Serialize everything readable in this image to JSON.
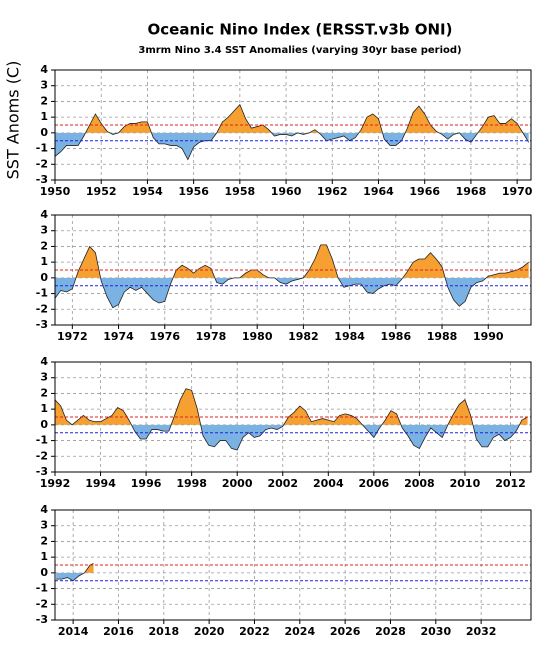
{
  "title": "Oceanic Nino Index (ERSST.v3b ONI)",
  "subtitle": "3mrm Nino 3.4 SST Anomalies (varying 30yr base period)",
  "y_label": "SST Anoms (C)",
  "chart_data": [
    {
      "type": "anomaly-area",
      "positive_color": "#f5a030",
      "negative_color": "#7ab2e4",
      "line_color": "#222222",
      "xlim": [
        1950,
        1970.6
      ],
      "ylim": [
        -3,
        4
      ],
      "yticks": [
        -3,
        -2,
        -1,
        0,
        1,
        2,
        3,
        4
      ],
      "grid": true,
      "xticks": [
        1950,
        1952,
        1954,
        1956,
        1958,
        1960,
        1962,
        1964,
        1966,
        1968,
        1970
      ],
      "thresholds": [
        {
          "value": 0.5,
          "color": "#e02020"
        },
        {
          "value": -0.5,
          "color": "#2020e0"
        }
      ],
      "x": [
        1950,
        1950.25,
        1950.5,
        1950.75,
        1951,
        1951.25,
        1951.5,
        1951.75,
        1952,
        1952.25,
        1952.5,
        1952.75,
        1953,
        1953.25,
        1953.5,
        1953.75,
        1954,
        1954.25,
        1954.5,
        1954.75,
        1955,
        1955.25,
        1955.5,
        1955.75,
        1956,
        1956.25,
        1956.5,
        1956.75,
        1957,
        1957.25,
        1957.5,
        1957.75,
        1958,
        1958.25,
        1958.5,
        1958.75,
        1959,
        1959.25,
        1959.5,
        1959.75,
        1960,
        1960.25,
        1960.5,
        1960.75,
        1961,
        1961.25,
        1961.5,
        1961.75,
        1962,
        1962.25,
        1962.5,
        1962.75,
        1963,
        1963.25,
        1963.5,
        1963.75,
        1964,
        1964.25,
        1964.5,
        1964.75,
        1965,
        1965.25,
        1965.5,
        1965.75,
        1966,
        1966.25,
        1966.5,
        1966.75,
        1967,
        1967.25,
        1967.5,
        1967.75,
        1968,
        1968.25,
        1968.5,
        1968.75,
        1969,
        1969.25,
        1969.5,
        1969.75,
        1970,
        1970.25,
        1970.5
      ],
      "values": [
        -1.5,
        -1.2,
        -0.8,
        -0.8,
        -0.8,
        -0.2,
        0.5,
        1.2,
        0.6,
        0.1,
        -0.1,
        0.0,
        0.4,
        0.6,
        0.6,
        0.7,
        0.7,
        -0.3,
        -0.7,
        -0.7,
        -0.8,
        -0.8,
        -1.0,
        -1.7,
        -0.9,
        -0.6,
        -0.5,
        -0.5,
        0.0,
        0.7,
        1.0,
        1.4,
        1.8,
        0.9,
        0.3,
        0.4,
        0.5,
        0.2,
        -0.2,
        -0.1,
        -0.1,
        -0.2,
        0.0,
        -0.1,
        0.0,
        0.2,
        -0.1,
        -0.5,
        -0.4,
        -0.3,
        -0.2,
        -0.5,
        -0.3,
        0.2,
        1.0,
        1.2,
        0.9,
        -0.4,
        -0.8,
        -0.8,
        -0.5,
        0.3,
        1.3,
        1.7,
        1.2,
        0.5,
        0.1,
        -0.1,
        -0.4,
        -0.1,
        0.0,
        -0.4,
        -0.6,
        -0.1,
        0.4,
        1.0,
        1.1,
        0.6,
        0.6,
        0.9,
        0.6,
        0.0,
        -0.6
      ]
    },
    {
      "type": "anomaly-area",
      "positive_color": "#f5a030",
      "negative_color": "#7ab2e4",
      "line_color": "#222222",
      "xlim": [
        1971.25,
        1991.85
      ],
      "ylim": [
        -3,
        4
      ],
      "yticks": [
        -3,
        -2,
        -1,
        0,
        1,
        2,
        3,
        4
      ],
      "grid": true,
      "xticks": [
        1972,
        1974,
        1976,
        1978,
        1980,
        1982,
        1984,
        1986,
        1988,
        1990
      ],
      "thresholds": [
        {
          "value": 0.5,
          "color": "#e02020"
        },
        {
          "value": -0.5,
          "color": "#2020e0"
        }
      ],
      "x": [
        1971.25,
        1971.5,
        1971.75,
        1972,
        1972.25,
        1972.5,
        1972.75,
        1973,
        1973.25,
        1973.5,
        1973.75,
        1974,
        1974.25,
        1974.5,
        1974.75,
        1975,
        1975.25,
        1975.5,
        1975.75,
        1976,
        1976.25,
        1976.5,
        1976.75,
        1977,
        1977.25,
        1977.5,
        1977.75,
        1978,
        1978.25,
        1978.5,
        1978.75,
        1979,
        1979.25,
        1979.5,
        1979.75,
        1980,
        1980.25,
        1980.5,
        1980.75,
        1981,
        1981.25,
        1981.5,
        1981.75,
        1982,
        1982.25,
        1982.5,
        1982.75,
        1983,
        1983.25,
        1983.5,
        1983.75,
        1984,
        1984.25,
        1984.5,
        1984.75,
        1985,
        1985.25,
        1985.5,
        1985.75,
        1986,
        1986.25,
        1986.5,
        1986.75,
        1987,
        1987.25,
        1987.5,
        1987.75,
        1988,
        1988.25,
        1988.5,
        1988.75,
        1989,
        1989.25,
        1989.5,
        1989.75,
        1990,
        1990.25,
        1990.5,
        1990.75,
        1991,
        1991.25,
        1991.5,
        1991.75
      ],
      "values": [
        -1.3,
        -0.8,
        -0.9,
        -0.7,
        0.4,
        1.2,
        2.0,
        1.6,
        -0.2,
        -1.2,
        -1.9,
        -1.7,
        -0.9,
        -0.6,
        -0.8,
        -0.6,
        -1.0,
        -1.4,
        -1.6,
        -1.5,
        -0.4,
        0.5,
        0.8,
        0.6,
        0.3,
        0.6,
        0.8,
        0.6,
        -0.3,
        -0.4,
        -0.1,
        0.0,
        0.0,
        0.3,
        0.5,
        0.5,
        0.2,
        0.0,
        0.0,
        -0.3,
        -0.4,
        -0.2,
        -0.1,
        0.0,
        0.5,
        1.2,
        2.1,
        2.1,
        1.2,
        0.0,
        -0.6,
        -0.5,
        -0.4,
        -0.4,
        -0.9,
        -1.0,
        -0.7,
        -0.5,
        -0.4,
        -0.5,
        -0.1,
        0.4,
        1.0,
        1.2,
        1.2,
        1.6,
        1.2,
        0.7,
        -0.6,
        -1.4,
        -1.8,
        -1.5,
        -0.6,
        -0.3,
        -0.2,
        0.1,
        0.2,
        0.3,
        0.3,
        0.4,
        0.5,
        0.7,
        1.0
      ]
    },
    {
      "type": "anomaly-area",
      "positive_color": "#f5a030",
      "negative_color": "#7ab2e4",
      "line_color": "#222222",
      "xlim": [
        1992,
        2012.9
      ],
      "ylim": [
        -3,
        4
      ],
      "yticks": [
        -3,
        -2,
        -1,
        0,
        1,
        2,
        3,
        4
      ],
      "grid": true,
      "xticks": [
        1992,
        1994,
        1996,
        1998,
        2000,
        2002,
        2004,
        2006,
        2008,
        2010,
        2012
      ],
      "thresholds": [
        {
          "value": 0.5,
          "color": "#e02020"
        },
        {
          "value": -0.5,
          "color": "#2020e0"
        }
      ],
      "x": [
        1992,
        1992.25,
        1992.5,
        1992.75,
        1993,
        1993.25,
        1993.5,
        1993.75,
        1994,
        1994.25,
        1994.5,
        1994.75,
        1995,
        1995.25,
        1995.5,
        1995.75,
        1996,
        1996.25,
        1996.5,
        1996.75,
        1997,
        1997.25,
        1997.5,
        1997.75,
        1998,
        1998.25,
        1998.5,
        1998.75,
        1999,
        1999.25,
        1999.5,
        1999.75,
        2000,
        2000.25,
        2000.5,
        2000.75,
        2001,
        2001.25,
        2001.5,
        2001.75,
        2002,
        2002.25,
        2002.5,
        2002.75,
        2003,
        2003.25,
        2003.5,
        2003.75,
        2004,
        2004.25,
        2004.5,
        2004.75,
        2005,
        2005.25,
        2005.5,
        2005.75,
        2006,
        2006.25,
        2006.5,
        2006.75,
        2007,
        2007.25,
        2007.5,
        2007.75,
        2008,
        2008.25,
        2008.5,
        2008.75,
        2009,
        2009.25,
        2009.5,
        2009.75,
        2010,
        2010.25,
        2010.5,
        2010.75,
        2011,
        2011.25,
        2011.5,
        2011.75,
        2012,
        2012.25,
        2012.5,
        2012.75
      ],
      "values": [
        1.6,
        1.2,
        0.3,
        0.0,
        0.3,
        0.6,
        0.3,
        0.2,
        0.2,
        0.4,
        0.6,
        1.1,
        0.9,
        0.3,
        -0.4,
        -0.9,
        -0.9,
        -0.3,
        -0.3,
        -0.4,
        -0.4,
        0.6,
        1.6,
        2.3,
        2.2,
        1.0,
        -0.7,
        -1.3,
        -1.4,
        -1.0,
        -1.0,
        -1.5,
        -1.6,
        -0.8,
        -0.5,
        -0.8,
        -0.7,
        -0.3,
        -0.2,
        -0.3,
        -0.1,
        0.5,
        0.8,
        1.2,
        0.9,
        0.2,
        0.3,
        0.4,
        0.3,
        0.2,
        0.6,
        0.7,
        0.6,
        0.4,
        0.0,
        -0.4,
        -0.8,
        -0.2,
        0.3,
        0.9,
        0.7,
        -0.2,
        -0.7,
        -1.3,
        -1.5,
        -0.8,
        -0.2,
        -0.5,
        -0.8,
        0.0,
        0.7,
        1.3,
        1.6,
        0.6,
        -0.9,
        -1.4,
        -1.4,
        -0.8,
        -0.6,
        -1.0,
        -0.8,
        -0.4,
        0.3,
        0.5
      ]
    },
    {
      "type": "anomaly-area",
      "positive_color": "#f5a030",
      "negative_color": "#7ab2e4",
      "line_color": "#222222",
      "xlim": [
        2013.2,
        2034.2
      ],
      "ylim": [
        -3,
        4
      ],
      "yticks": [
        -3,
        -2,
        -1,
        0,
        1,
        2,
        3,
        4
      ],
      "grid": true,
      "xticks": [
        2014,
        2016,
        2018,
        2020,
        2022,
        2024,
        2026,
        2028,
        2030,
        2032
      ],
      "thresholds": [
        {
          "value": 0.5,
          "color": "#e02020"
        },
        {
          "value": -0.5,
          "color": "#2020e0"
        }
      ],
      "x": [
        2013.25,
        2013.5,
        2013.75,
        2014,
        2014.25,
        2014.5,
        2014.75,
        2014.9
      ],
      "values": [
        -0.4,
        -0.4,
        -0.3,
        -0.5,
        -0.2,
        0.0,
        0.5,
        0.6
      ]
    }
  ]
}
